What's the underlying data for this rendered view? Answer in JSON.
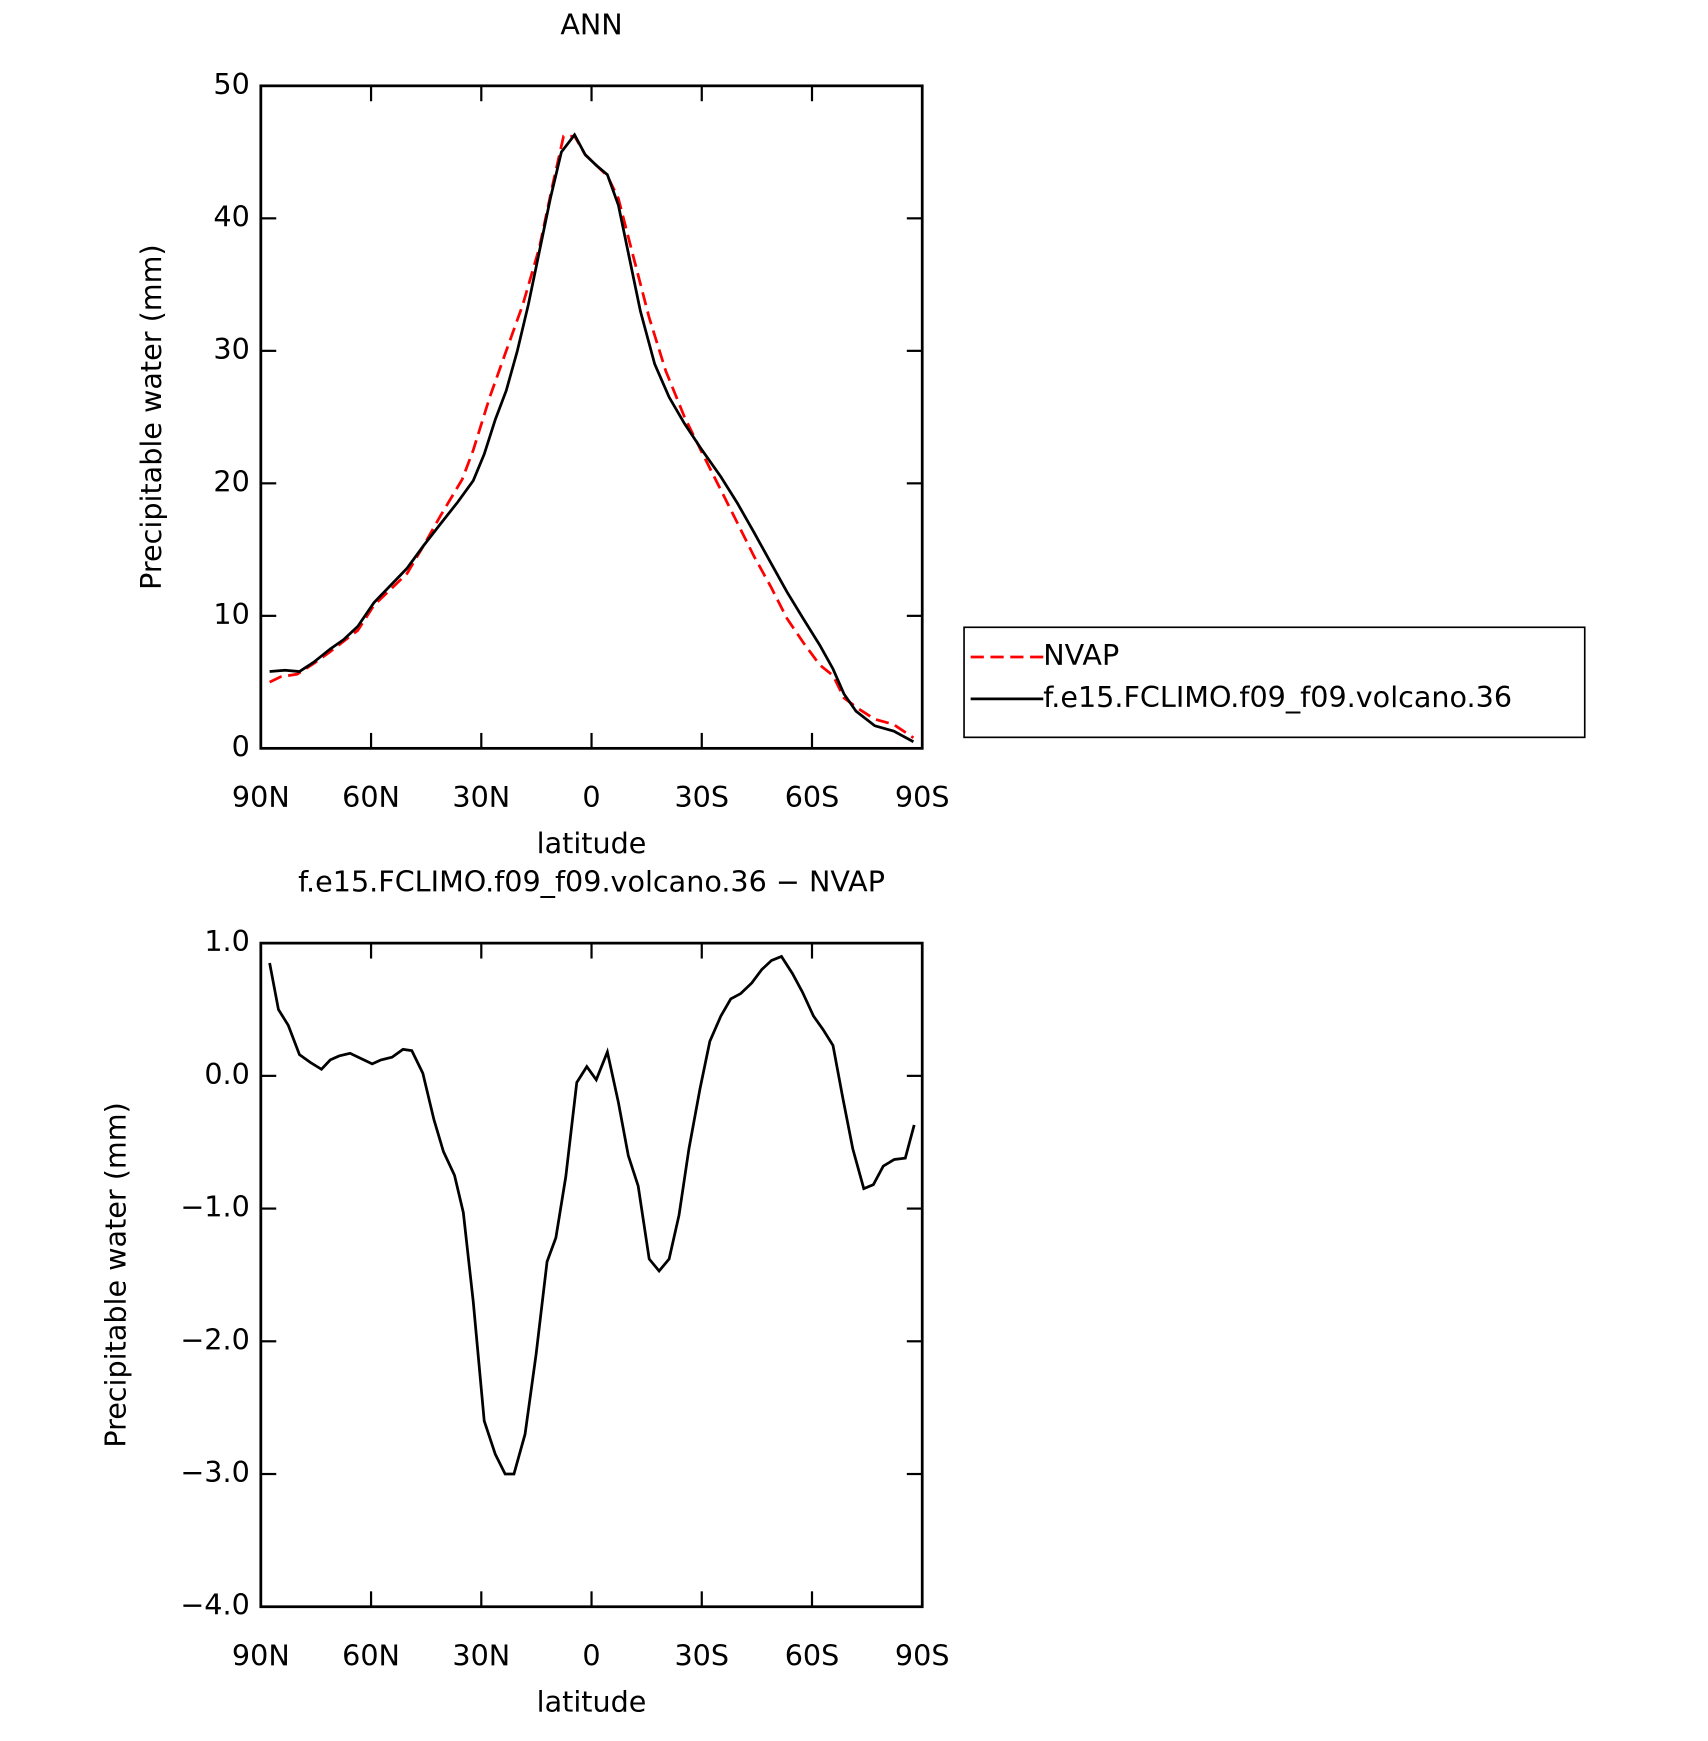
{
  "chart_data": [
    {
      "type": "line",
      "title": "ANN",
      "x_label": "latitude",
      "y_label": "Precipitable water (mm)",
      "xlim": [
        90,
        -90
      ],
      "xticks": [
        {
          "value": 90,
          "label": "90N"
        },
        {
          "value": 60,
          "label": "60N"
        },
        {
          "value": 30,
          "label": "30N"
        },
        0,
        {
          "value": -30,
          "label": "30S"
        },
        {
          "value": -60,
          "label": "60S"
        },
        {
          "value": -90,
          "label": "90S"
        }
      ],
      "ylim": [
        0,
        50
      ],
      "yticks": [
        0,
        10,
        20,
        30,
        40,
        50
      ],
      "legend": "right",
      "series": [
        {
          "name": "NVAP",
          "color": "#ff0000",
          "linestyle": "dashed",
          "x": [
            87.6,
            84.6,
            80.1,
            75.6,
            71.1,
            63.6,
            59.2,
            50.2,
            45.7,
            41.2,
            35.2,
            32.2,
            27.7,
            23.2,
            18.7,
            14.2,
            10.6,
            7.6,
            4.6,
            1.7,
            -1.3,
            -4.3,
            -7.3,
            -11.2,
            -15.7,
            -20.2,
            -25.3,
            -30.1,
            -35.2,
            -39.7,
            -44.2,
            -48.8,
            -53.2,
            -57.6,
            -62.1,
            -65.7,
            -68.7,
            -72.6,
            -77.1,
            -82.2,
            -87.6
          ],
          "values": [
            5.0,
            5.4,
            5.6,
            6.4,
            7.3,
            8.9,
            10.8,
            13.2,
            15.3,
            17.5,
            20.3,
            22.5,
            26.5,
            30,
            33.5,
            37.8,
            42.5,
            46.2,
            46.2,
            44.8,
            44,
            43.2,
            41.5,
            37.3,
            32.5,
            28.5,
            25,
            22.3,
            19.5,
            17,
            14.5,
            12.2,
            9.8,
            8,
            6.3,
            5.5,
            3.8,
            3.0,
            2.2,
            1.8,
            0.8
          ]
        },
        {
          "name": "f.e15.FCLIMO.f09_f09.volcano.36",
          "color": "#000000",
          "linestyle": "solid",
          "x": [
            87.6,
            83.4,
            79.5,
            75.6,
            71.1,
            67.5,
            63.6,
            59.2,
            54.7,
            50.2,
            45.7,
            41.2,
            36.4,
            32.2,
            29.2,
            26.2,
            23.2,
            20.2,
            17.2,
            14.2,
            11.2,
            8.2,
            4.6,
            1.7,
            -1.3,
            -4.3,
            -7.3,
            -10.3,
            -13.3,
            -17.2,
            -21.1,
            -25.3,
            -30.1,
            -35.2,
            -39.7,
            -44.2,
            -48.8,
            -53.2,
            -57.6,
            -62.1,
            -65.7,
            -68.7,
            -72.0,
            -77.1,
            -82.2,
            -87.6
          ],
          "values": [
            5.8,
            5.9,
            5.8,
            6.5,
            7.5,
            8.2,
            9.2,
            11,
            12.3,
            13.6,
            15.3,
            16.9,
            18.6,
            20.2,
            22.2,
            24.8,
            27,
            30,
            33.5,
            37.5,
            41.5,
            45,
            46.3,
            44.8,
            44,
            43.3,
            41,
            37,
            33,
            29,
            26.5,
            24.5,
            22.5,
            20.5,
            18.5,
            16.3,
            14,
            11.8,
            9.8,
            7.8,
            6,
            4.1,
            2.8,
            1.7,
            1.3,
            0.5
          ]
        }
      ]
    },
    {
      "type": "line",
      "title": "f.e15.FCLIMO.f09_f09.volcano.36 − NVAP",
      "x_label": "latitude",
      "y_label": "Precipitable water (mm)",
      "xlim": [
        90,
        -90
      ],
      "xticks": [
        {
          "value": 90,
          "label": "90N"
        },
        {
          "value": 60,
          "label": "60N"
        },
        {
          "value": 30,
          "label": "30N"
        },
        0,
        {
          "value": -30,
          "label": "30S"
        },
        {
          "value": -60,
          "label": "60S"
        },
        {
          "value": -90,
          "label": "90S"
        }
      ],
      "ylim": [
        -4,
        1
      ],
      "yticks": [
        {
          "value": -4,
          "label": "−4.0"
        },
        {
          "value": -3,
          "label": "−3.0"
        },
        {
          "value": -2,
          "label": "−2.0"
        },
        {
          "value": -1,
          "label": "−1.0"
        },
        {
          "value": 0,
          "label": "0.0"
        },
        {
          "value": 1,
          "label": "1.0"
        }
      ],
      "series": [
        {
          "color": "#000000",
          "linestyle": "solid",
          "x": [
            87.6,
            85.2,
            82.5,
            79.5,
            76.5,
            73.5,
            71.1,
            68.7,
            65.7,
            62.7,
            59.7,
            57.3,
            54.3,
            51.3,
            48.9,
            45.9,
            42.9,
            40.3,
            37.3,
            34.9,
            32.2,
            29.2,
            26.2,
            23.5,
            21.1,
            18.1,
            15.1,
            12.1,
            9.7,
            7.0,
            4.0,
            1.3,
            -1.3,
            -4.3,
            -7.3,
            -10.0,
            -12.7,
            -15.7,
            -18.4,
            -21.1,
            -23.8,
            -26.5,
            -29.5,
            -32.2,
            -35.2,
            -37.9,
            -40.6,
            -43.6,
            -46.3,
            -49.0,
            -51.7,
            -54.7,
            -57.4,
            -60.4,
            -63.0,
            -65.7,
            -68.4,
            -71.1,
            -74.1,
            -76.7,
            -79.4,
            -82.4,
            -85.4,
            -87.8
          ],
          "values": [
            0.85,
            0.5,
            0.38,
            0.16,
            0.1,
            0.05,
            0.12,
            0.15,
            0.17,
            0.13,
            0.09,
            0.12,
            0.14,
            0.2,
            0.19,
            0.02,
            -0.33,
            -0.57,
            -0.75,
            -1.03,
            -1.7,
            -2.6,
            -2.85,
            -3.0,
            -3.0,
            -2.7,
            -2.1,
            -1.4,
            -1.22,
            -0.76,
            -0.05,
            0.07,
            -0.03,
            0.18,
            -0.2,
            -0.6,
            -0.83,
            -1.38,
            -1.47,
            -1.38,
            -1.05,
            -0.55,
            -0.1,
            0.26,
            0.45,
            0.58,
            0.62,
            0.7,
            0.8,
            0.87,
            0.9,
            0.77,
            0.63,
            0.45,
            0.35,
            0.23,
            -0.17,
            -0.55,
            -0.85,
            -0.82,
            -0.68,
            -0.63,
            -0.62,
            -0.37
          ]
        }
      ]
    }
  ]
}
